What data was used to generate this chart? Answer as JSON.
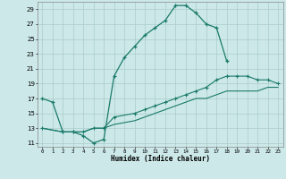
{
  "xlabel": "Humidex (Indice chaleur)",
  "bg_color": "#cce8e8",
  "grid_color": "#aacccc",
  "line_color": "#1a7a6a",
  "xlim": [
    -0.5,
    23.5
  ],
  "ylim": [
    10.5,
    30.0
  ],
  "yticks": [
    11,
    13,
    15,
    17,
    19,
    21,
    23,
    25,
    27,
    29
  ],
  "xticks": [
    0,
    1,
    2,
    3,
    4,
    5,
    6,
    7,
    8,
    9,
    10,
    11,
    12,
    13,
    14,
    15,
    16,
    17,
    18,
    19,
    20,
    21,
    22,
    23
  ],
  "line1_x": [
    0,
    1,
    2,
    3,
    4,
    5,
    6,
    7,
    8,
    9,
    10,
    11,
    12,
    13,
    14,
    15,
    16,
    17,
    18
  ],
  "line1_y": [
    17,
    16.5,
    12.5,
    12.5,
    12,
    11,
    11.5,
    20,
    22.5,
    24,
    25.5,
    26.5,
    27.5,
    29.5,
    29.5,
    28.5,
    27,
    26.5,
    22
  ],
  "line2_x": [
    0,
    2,
    3,
    4,
    5,
    6,
    7,
    9,
    10,
    11,
    12,
    13,
    14,
    15,
    16,
    17,
    18,
    19,
    20,
    21,
    22,
    23
  ],
  "line2_y": [
    13,
    12.5,
    12.5,
    12.5,
    13,
    13,
    14.5,
    15,
    15.5,
    16,
    16.5,
    17,
    17.5,
    18,
    18.5,
    19.5,
    20,
    20,
    20,
    19.5,
    19.5,
    19
  ],
  "line3_x": [
    0,
    2,
    3,
    4,
    5,
    6,
    7,
    9,
    10,
    11,
    12,
    13,
    14,
    15,
    16,
    17,
    18,
    19,
    20,
    21,
    22,
    23
  ],
  "line3_y": [
    13,
    12.5,
    12.5,
    12.5,
    13,
    13,
    13.5,
    14,
    14.5,
    15,
    15.5,
    16,
    16.5,
    17,
    17,
    17.5,
    18,
    18,
    18,
    18,
    18.5,
    18.5
  ]
}
